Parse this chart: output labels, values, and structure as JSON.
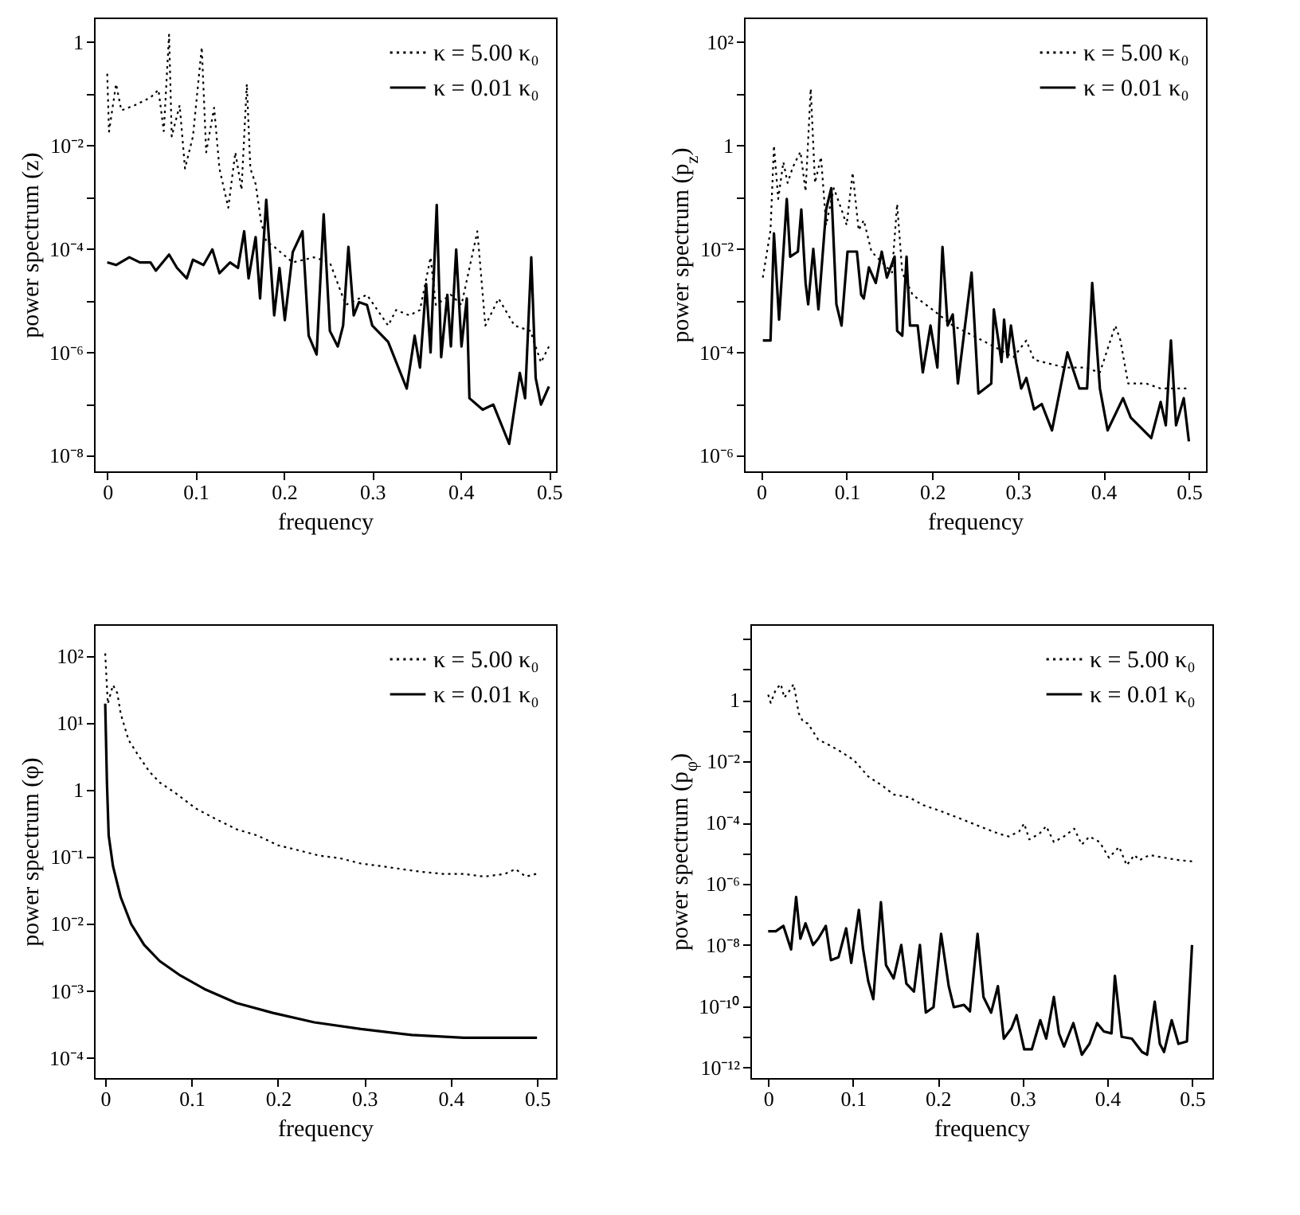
{
  "chart_data": [
    {
      "type": "line",
      "xlabel": "frequency",
      "ylabel": "power spectrum (z)",
      "log": "y",
      "grid": false,
      "legend": "top right",
      "xlim": [
        -0.015,
        0.508
      ],
      "ylim": [
        5e-09,
        3
      ],
      "xticks": [
        0,
        0.1,
        0.2,
        0.3,
        0.4,
        0.5
      ],
      "yticks": [
        {
          "value": 1,
          "label": "1"
        },
        {
          "value": 0.1,
          "label": null
        },
        {
          "value": 0.01,
          "label": "10⁻²"
        },
        {
          "value": 0.001,
          "label": null
        },
        {
          "value": 0.0001,
          "label": "10⁻⁴"
        },
        {
          "value": 1e-05,
          "label": null
        },
        {
          "value": 1e-06,
          "label": "10⁻⁶"
        },
        {
          "value": 1e-07,
          "label": null
        },
        {
          "value": 1e-08,
          "label": "10⁻⁸"
        }
      ],
      "series": [
        {
          "name": "κ = 5.00 κ₀",
          "color": "#000000",
          "line_style": "dotted",
          "x": [
            0,
            0.002,
            0.01,
            0.016,
            0.031,
            0.049,
            0.058,
            0.064,
            0.07,
            0.073,
            0.082,
            0.088,
            0.097,
            0.107,
            0.112,
            0.121,
            0.127,
            0.137,
            0.145,
            0.152,
            0.158,
            0.162,
            0.168,
            0.174,
            0.18,
            0.189,
            0.21,
            0.234,
            0.252,
            0.27,
            0.294,
            0.318,
            0.327,
            0.342,
            0.354,
            0.366,
            0.372,
            0.389,
            0.401,
            0.419,
            0.428,
            0.443,
            0.461,
            0.479,
            0.491,
            0.5
          ],
          "values": [
            0.245,
            0.0186,
            0.155,
            0.048,
            0.06,
            0.085,
            0.12,
            0.019,
            1.4,
            0.015,
            0.06,
            0.0036,
            0.015,
            0.8,
            0.0074,
            0.054,
            0.0036,
            0.00063,
            0.0074,
            0.0014,
            0.155,
            0.0036,
            0.0018,
            0.00035,
            0.00014,
            0.00011,
            5.5e-05,
            6.9e-05,
            5.5e-05,
            8.3e-06,
            1.3e-05,
            3.3e-06,
            6.6e-06,
            5.2e-06,
            6.6e-06,
            6.9e-05,
            8.3e-06,
            1.3e-05,
            8.3e-06,
            0.00022,
            3.3e-06,
            1.1e-05,
            3.3e-06,
            2.6e-06,
            6.4e-07,
            1.3e-06
          ]
        },
        {
          "name": "κ = 0.01 κ₀",
          "color": "#000000",
          "line_style": "solid",
          "x": [
            0,
            0.01,
            0.025,
            0.037,
            0.049,
            0.055,
            0.07,
            0.079,
            0.09,
            0.097,
            0.109,
            0.119,
            0.127,
            0.139,
            0.148,
            0.155,
            0.16,
            0.168,
            0.173,
            0.18,
            0.189,
            0.195,
            0.201,
            0.21,
            0.221,
            0.228,
            0.237,
            0.245,
            0.252,
            0.261,
            0.267,
            0.273,
            0.279,
            0.285,
            0.294,
            0.3,
            0.318,
            0.339,
            0.348,
            0.354,
            0.361,
            0.366,
            0.373,
            0.378,
            0.385,
            0.389,
            0.395,
            0.401,
            0.407,
            0.41,
            0.425,
            0.437,
            0.455,
            0.467,
            0.473,
            0.48,
            0.485,
            0.491,
            0.5
          ],
          "values": [
            5.5e-05,
            4.9e-05,
            6.9e-05,
            5.5e-05,
            5.5e-05,
            3.8e-05,
            7.8e-05,
            4.3e-05,
            2.7e-05,
            6.2e-05,
            4.9e-05,
            9.8e-05,
            3.4e-05,
            5.5e-05,
            4.3e-05,
            0.00022,
            2.7e-05,
            0.00017,
            1.1e-05,
            0.0009,
            5.2e-06,
            4.3e-05,
            4.2e-06,
            8.7e-05,
            0.00022,
            2.1e-06,
            9.1e-07,
            0.00047,
            2.6e-06,
            1.3e-06,
            3.3e-06,
            0.00011,
            5.2e-06,
            9.4e-06,
            8.3e-06,
            3.3e-06,
            1.6e-06,
            2e-07,
            2.1e-06,
            5.1e-07,
            2.1e-05,
            1e-06,
            0.00071,
            8.1e-07,
            1.3e-05,
            1.3e-06,
            9.8e-05,
            1.3e-06,
            1.1e-05,
            1.3e-07,
            7.8e-08,
            9.8e-08,
            1.7e-08,
            4e-07,
            1.3e-07,
            6.9e-05,
            3.2e-07,
            9.8e-08,
            2.2e-07
          ]
        }
      ]
    },
    {
      "type": "line",
      "xlabel": "frequency",
      "ylabel": "power spectrum (p$_{z}$)",
      "log": "y",
      "grid": false,
      "legend": "top right",
      "xlim": [
        -0.02,
        0.52
      ],
      "ylim": [
        5e-07,
        300
      ],
      "xticks": [
        0,
        0.1,
        0.2,
        0.3,
        0.4,
        0.5
      ],
      "yticks": [
        {
          "value": 100,
          "label": "10²"
        },
        {
          "value": 10,
          "label": null
        },
        {
          "value": 1,
          "label": "1"
        },
        {
          "value": 0.1,
          "label": null
        },
        {
          "value": 0.01,
          "label": "10⁻²"
        },
        {
          "value": 0.001,
          "label": null
        },
        {
          "value": 0.0001,
          "label": "10⁻⁴"
        },
        {
          "value": 1e-05,
          "label": null
        },
        {
          "value": 1e-06,
          "label": "10⁻⁶"
        }
      ],
      "series": [
        {
          "name": "κ = 5.00 κ₀",
          "color": "#000000",
          "line_style": "dotted",
          "x": [
            0.002,
            0.011,
            0.015,
            0.02,
            0.026,
            0.031,
            0.037,
            0.046,
            0.052,
            0.058,
            0.063,
            0.07,
            0.076,
            0.085,
            0.094,
            0.1,
            0.107,
            0.114,
            0.12,
            0.129,
            0.141,
            0.153,
            0.159,
            0.165,
            0.177,
            0.2,
            0.224,
            0.248,
            0.272,
            0.295,
            0.31,
            0.319,
            0.355,
            0.378,
            0.396,
            0.414,
            0.42,
            0.429,
            0.45,
            0.467,
            0.497
          ],
          "values": [
            0.0028,
            0.023,
            1,
            0.093,
            0.48,
            0.19,
            0.38,
            0.76,
            0.13,
            12.6,
            0.19,
            0.6,
            0.029,
            0.15,
            0.058,
            0.029,
            0.3,
            0.023,
            0.036,
            0.0089,
            0.0056,
            0.0035,
            0.074,
            0.0035,
            0.0013,
            0.00068,
            0.00033,
            0.00021,
            0.00013,
            8.1e-05,
            0.00017,
            7.2e-05,
            5.1e-05,
            5.1e-05,
            4.1e-05,
            0.00033,
            0.00017,
            2.5e-05,
            2.5e-05,
            2e-05,
            2e-05
          ]
        },
        {
          "name": "κ = 0.01 κ₀",
          "color": "#000000",
          "line_style": "solid",
          "x": [
            0.002,
            0.011,
            0.015,
            0.021,
            0.03,
            0.034,
            0.043,
            0.047,
            0.052,
            0.055,
            0.061,
            0.067,
            0.076,
            0.082,
            0.088,
            0.094,
            0.101,
            0.112,
            0.117,
            0.12,
            0.126,
            0.134,
            0.141,
            0.147,
            0.156,
            0.159,
            0.165,
            0.17,
            0.174,
            0.183,
            0.189,
            0.198,
            0.206,
            0.212,
            0.218,
            0.224,
            0.23,
            0.246,
            0.254,
            0.269,
            0.272,
            0.281,
            0.284,
            0.288,
            0.292,
            0.298,
            0.304,
            0.31,
            0.319,
            0.328,
            0.34,
            0.358,
            0.372,
            0.381,
            0.387,
            0.396,
            0.405,
            0.423,
            0.432,
            0.456,
            0.467,
            0.473,
            0.479,
            0.485,
            0.494,
            0.5
          ],
          "values": [
            0.00017,
            0.00017,
            0.02,
            0.00043,
            0.093,
            0.0071,
            0.0089,
            0.058,
            0.0022,
            0.00085,
            0.01,
            0.00068,
            0.058,
            0.15,
            0.00085,
            0.00033,
            0.0089,
            0.0089,
            0.0013,
            0.0011,
            0.0044,
            0.0022,
            0.0089,
            0.0028,
            0.0071,
            0.00026,
            0.00021,
            0.0071,
            0.00033,
            0.00033,
            4.1e-05,
            0.00033,
            5.1e-05,
            0.011,
            0.00033,
            0.00054,
            2.5e-05,
            0.0035,
            1.6e-05,
            2.5e-05,
            0.00068,
            6.5e-05,
            0.00043,
            8.1e-05,
            0.00033,
            6.5e-05,
            2e-05,
            3.2e-05,
            7.9e-06,
            1e-05,
            3.1e-06,
            0.0001,
            2e-05,
            2e-05,
            0.0022,
            2e-05,
            3.1e-06,
            1.3e-05,
            5.5e-06,
            2.2e-06,
            1.1e-05,
            3.9e-06,
            0.00017,
            3.9e-06,
            1.3e-05,
            1.9e-06
          ]
        }
      ]
    },
    {
      "type": "line",
      "xlabel": "frequency",
      "ylabel": "power spectrum (φ)",
      "log": "y",
      "grid": false,
      "legend": "top right",
      "xlim": [
        -0.013,
        0.522
      ],
      "ylim": [
        5e-05,
        300
      ],
      "xticks": [
        0,
        0.1,
        0.2,
        0.3,
        0.4,
        0.5
      ],
      "yticks": [
        {
          "value": 100,
          "label": "10²"
        },
        {
          "value": 10,
          "label": "10¹"
        },
        {
          "value": 1,
          "label": "1"
        },
        {
          "value": 0.1,
          "label": "10⁻¹"
        },
        {
          "value": 0.01,
          "label": "10⁻²"
        },
        {
          "value": 0.001,
          "label": "10⁻³"
        },
        {
          "value": 0.0001,
          "label": "10⁻⁴"
        }
      ],
      "series": [
        {
          "name": "κ = 5.00 κ₀",
          "color": "#000000",
          "line_style": "dotted",
          "x": [
            0,
            0.003,
            0.009,
            0.014,
            0.018,
            0.027,
            0.039,
            0.051,
            0.063,
            0.081,
            0.105,
            0.128,
            0.152,
            0.176,
            0.2,
            0.224,
            0.248,
            0.272,
            0.296,
            0.32,
            0.343,
            0.367,
            0.391,
            0.415,
            0.439,
            0.463,
            0.475,
            0.487,
            0.499
          ],
          "values": [
            110,
            19.5,
            37,
            28,
            13.7,
            5.6,
            3.2,
            1.9,
            1.3,
            0.91,
            0.53,
            0.37,
            0.26,
            0.21,
            0.15,
            0.126,
            0.105,
            0.096,
            0.08,
            0.073,
            0.066,
            0.06,
            0.056,
            0.056,
            0.051,
            0.056,
            0.066,
            0.051,
            0.056
          ]
        },
        {
          "name": "κ = 0.01 κ₀",
          "color": "#000000",
          "line_style": "solid",
          "x": [
            0,
            0.002,
            0.004,
            0.009,
            0.018,
            0.03,
            0.045,
            0.063,
            0.087,
            0.116,
            0.152,
            0.194,
            0.242,
            0.296,
            0.355,
            0.415,
            0.5
          ],
          "values": [
            19.5,
            1.3,
            0.21,
            0.073,
            0.025,
            0.01,
            0.0049,
            0.0028,
            0.0017,
            0.00105,
            0.00066,
            0.00047,
            0.00034,
            0.00027,
            0.00022,
            0.0002,
            0.0002
          ]
        }
      ]
    },
    {
      "type": "line",
      "xlabel": "frequency",
      "ylabel": "power spectrum (p$_{φ}$)",
      "log": "y",
      "grid": false,
      "legend": "top right",
      "xlim": [
        -0.021,
        0.524
      ],
      "ylim": [
        4.5e-13,
        300
      ],
      "xticks": [
        0,
        0.1,
        0.2,
        0.3,
        0.4,
        0.5
      ],
      "yticks": [
        {
          "value": 100,
          "label": null
        },
        {
          "value": 10,
          "label": null
        },
        {
          "value": 1,
          "label": "1"
        },
        {
          "value": 0.1,
          "label": null
        },
        {
          "value": 0.01,
          "label": "10⁻²"
        },
        {
          "value": 0.001,
          "label": null
        },
        {
          "value": 0.0001,
          "label": "10⁻⁴"
        },
        {
          "value": 1e-05,
          "label": null
        },
        {
          "value": 1e-06,
          "label": "10⁻⁶"
        },
        {
          "value": 1e-07,
          "label": null
        },
        {
          "value": 1e-08,
          "label": "10⁻⁸"
        },
        {
          "value": 1e-09,
          "label": null
        },
        {
          "value": 1e-10,
          "label": "10⁻¹⁰"
        },
        {
          "value": 1e-11,
          "label": null
        },
        {
          "value": 1e-12,
          "label": "10⁻¹²"
        }
      ],
      "series": [
        {
          "name": "κ = 5.00 κ₀",
          "color": "#000000",
          "line_style": "dotted",
          "x": [
            0,
            0.003,
            0.009,
            0.015,
            0.019,
            0.024,
            0.03,
            0.033,
            0.036,
            0.041,
            0.047,
            0.053,
            0.059,
            0.071,
            0.083,
            0.101,
            0.118,
            0.136,
            0.148,
            0.166,
            0.183,
            0.201,
            0.225,
            0.249,
            0.272,
            0.284,
            0.296,
            0.302,
            0.308,
            0.32,
            0.328,
            0.337,
            0.349,
            0.361,
            0.37,
            0.379,
            0.391,
            0.402,
            0.414,
            0.423,
            0.432,
            0.438,
            0.45,
            0.467,
            0.485,
            0.5
          ],
          "values": [
            1.5,
            0.81,
            2.2,
            3.3,
            1.2,
            1.8,
            3.3,
            1.2,
            0.37,
            0.2,
            0.17,
            0.093,
            0.051,
            0.035,
            0.023,
            0.011,
            0.0032,
            0.0015,
            0.00082,
            0.00067,
            0.00037,
            0.00025,
            0.00014,
            7.6e-05,
            4.3e-05,
            3.5e-05,
            5.1e-05,
            9.3e-05,
            2.8e-05,
            4.3e-05,
            7.6e-05,
            2.3e-05,
            3.5e-05,
            6.3e-05,
            1.9e-05,
            3.5e-05,
            2.3e-05,
            7.1e-06,
            1.6e-05,
            4e-06,
            8.7e-06,
            5.9e-06,
            8.7e-06,
            7.1e-06,
            5.9e-06,
            5.4e-06
          ]
        },
        {
          "name": "κ = 0.01 κ₀",
          "color": "#000000",
          "line_style": "solid",
          "x": [
            0,
            0.009,
            0.018,
            0.027,
            0.033,
            0.038,
            0.044,
            0.053,
            0.059,
            0.068,
            0.074,
            0.083,
            0.092,
            0.098,
            0.107,
            0.112,
            0.118,
            0.124,
            0.133,
            0.139,
            0.148,
            0.157,
            0.163,
            0.172,
            0.179,
            0.186,
            0.195,
            0.204,
            0.213,
            0.219,
            0.231,
            0.238,
            0.247,
            0.254,
            0.263,
            0.271,
            0.278,
            0.287,
            0.293,
            0.302,
            0.311,
            0.321,
            0.328,
            0.337,
            0.343,
            0.349,
            0.36,
            0.37,
            0.379,
            0.388,
            0.396,
            0.405,
            0.409,
            0.417,
            0.429,
            0.441,
            0.447,
            0.456,
            0.462,
            0.467,
            0.476,
            0.484,
            0.494,
            0.5
          ],
          "values": [
            2.8e-08,
            2.8e-08,
            4.2e-08,
            7.1e-09,
            3.7e-07,
            1.6e-08,
            5.1e-08,
            1e-08,
            1.6e-08,
            4.2e-08,
            3.2e-09,
            4e-09,
            3.5e-08,
            2.6e-09,
            1.4e-07,
            7.1e-09,
            6.6e-10,
            1.7e-10,
            2.5e-07,
            2.2e-09,
            8.1e-10,
            1e-08,
            5.5e-10,
            3e-10,
            1e-08,
            6.2e-11,
            9.3e-11,
            2.3e-08,
            4.5e-10,
            9.3e-11,
            1.1e-10,
            6.8e-11,
            2.3e-08,
            2e-10,
            6.2e-11,
            4.5e-10,
            8.7e-12,
            1.9e-11,
            5.1e-11,
            3.9e-12,
            3.9e-12,
            3.5e-11,
            8.7e-12,
            2e-10,
            1.3e-11,
            4.8e-12,
            2.8e-11,
            2.6e-12,
            5.9e-12,
            2.8e-11,
            1.5e-11,
            1.3e-11,
            9.8e-10,
            1e-11,
            8.7e-12,
            3.2e-12,
            2.6e-12,
            1.4e-10,
            5.9e-12,
            3.2e-12,
            3.5e-11,
            5.9e-12,
            7.1e-12,
            1e-08
          ]
        }
      ]
    }
  ]
}
